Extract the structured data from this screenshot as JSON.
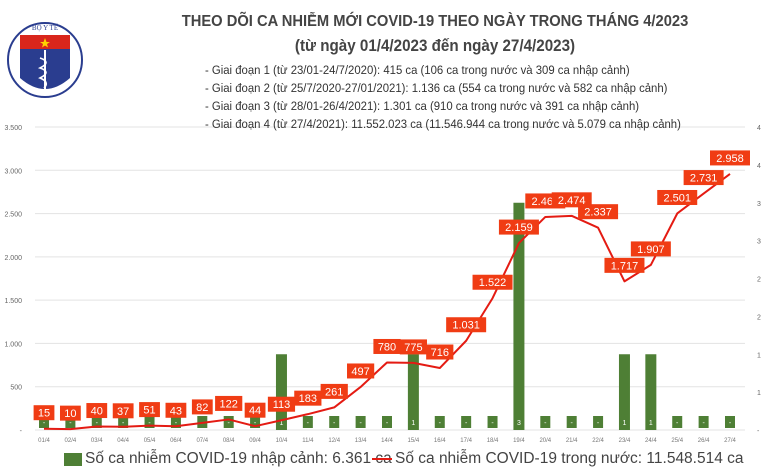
{
  "header": {
    "logo_text": "BỘ Y TẾ · MINISTRY OF HEALTH",
    "title": "THEO DÕI CA NHIỄM MỚI COVID-19 THEO NGÀY TRONG THÁNG 4/2023",
    "subtitle": "(từ ngày 01/4/2023 đến ngày 27/4/2023)",
    "notes": [
      "- Giai đoạn 1 (từ 23/01-24/7/2020): 415 ca (106 ca trong nước và 309 ca nhập cảnh)",
      "- Giai đoạn 2 (từ 25/7/2020-27/01/2021): 1.136 ca (554 ca trong nước và 582 ca nhập cảnh)",
      "- Giai đoạn 3 (từ 28/01-26/4/2021): 1.301 ca (910 ca trong nước và 391 ca nhập cảnh)",
      "- Giai đoạn 4 (từ 27/4/2021): 11.552.023 ca (11.546.944 ca trong nước và 5.079 ca nhập cảnh)"
    ]
  },
  "chart_data": {
    "type": "bar+line",
    "categories": [
      "01/4",
      "02/4",
      "03/4",
      "04/4",
      "05/4",
      "06/4",
      "07/4",
      "08/4",
      "09/4",
      "10/4",
      "11/4",
      "12/4",
      "13/4",
      "14/4",
      "15/4",
      "16/4",
      "17/4",
      "18/4",
      "19/4",
      "20/4",
      "21/4",
      "22/4",
      "23/4",
      "24/4",
      "25/4",
      "26/4",
      "27/4"
    ],
    "series": [
      {
        "name": "Số ca nhiễm COVID-19 nhập cảnh: 6.361 ca",
        "type": "bar",
        "axis": "right",
        "color": "#4e7f35",
        "values": [
          0,
          0,
          0,
          0,
          0,
          0,
          0,
          0,
          0,
          1,
          0,
          0,
          0,
          0,
          1,
          0,
          0,
          0,
          3,
          0,
          0,
          0,
          1,
          1,
          0,
          0,
          0
        ],
        "labels": [
          "-",
          "-",
          "-",
          "-",
          "-",
          "-",
          "-",
          "-",
          "-",
          "1",
          "-",
          "-",
          "-",
          "-",
          "1",
          "-",
          "-",
          "-",
          "3",
          "-",
          "-",
          "-",
          "1",
          "1",
          "-",
          "-",
          "-"
        ]
      },
      {
        "name": "Số ca nhiễm COVID-19 trong nước: 11.548.514 ca",
        "type": "line",
        "axis": "left",
        "color": "#e41b13",
        "values": [
          15,
          10,
          40,
          37,
          51,
          43,
          82,
          122,
          44,
          113,
          183,
          261,
          497,
          780,
          775,
          716,
          1031,
          1522,
          2159,
          2461,
          2474,
          2337,
          1717,
          1907,
          2501,
          2731,
          2958
        ],
        "labels": [
          "15",
          "10",
          "40",
          "37",
          "51",
          "43",
          "82",
          "122",
          "44",
          "113",
          "183",
          "261",
          "497",
          "780",
          "775",
          "716",
          "1.031",
          "1.522",
          "2.159",
          "2.461",
          "2.474",
          "2.337",
          "1.717",
          "1.907",
          "2.501",
          "2.731",
          "2.958"
        ]
      }
    ],
    "left_axis": {
      "ylim": [
        0,
        3500
      ],
      "ticks": [
        "-",
        "500",
        "1.000",
        "1.500",
        "2.000",
        "2.500",
        "3.000",
        "3.500"
      ]
    },
    "right_axis": {
      "ylim": [
        0,
        4
      ],
      "ticks": [
        "-",
        "1",
        "1",
        "2",
        "2",
        "3",
        "3",
        "4",
        "4"
      ]
    },
    "label_box_color": "#f03c14",
    "grid": true,
    "legend": "bottom"
  }
}
